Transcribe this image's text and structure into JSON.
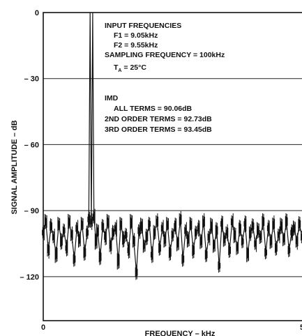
{
  "chart_data": {
    "type": "line",
    "xlabel": "FREQUENCY – kHz",
    "ylabel": "SIGNAL AMPLITUDE – dB",
    "xlim": [
      0,
      50
    ],
    "ylim": [
      -140,
      0
    ],
    "x_ticks": [
      "0",
      "5"
    ],
    "y_ticks": [
      "0",
      "– 30",
      "– 60",
      "– 90",
      "– 120"
    ],
    "y_tick_values": [
      0,
      -30,
      -60,
      -90,
      -120
    ],
    "grid": true,
    "series": [
      {
        "values_note": "FFT spectrum",
        "x": [
          0,
          0.5,
          1,
          1.5,
          2,
          2.5,
          3,
          3.5,
          4,
          4.5,
          5,
          5.5,
          6,
          6.5,
          7,
          7.5,
          8,
          8.5,
          8.8,
          9.05,
          9.3,
          9.55,
          9.8,
          10.2,
          10.5,
          11,
          11.5,
          12,
          12.5,
          13,
          13.5,
          14,
          14.5,
          15,
          15.5,
          16,
          16.5,
          17,
          17.5,
          18,
          18.5,
          19,
          19.5,
          20,
          20.5,
          21,
          21.5,
          22,
          22.5,
          23,
          23.5,
          24,
          24.5,
          25,
          25.5,
          26,
          26.5,
          27,
          27.5,
          28,
          28.5,
          29,
          29.5,
          30,
          30.5,
          31,
          31.5,
          32,
          32.5,
          33,
          33.5,
          34,
          34.5,
          35,
          35.5,
          36,
          36.5,
          37,
          37.5,
          38,
          38.5,
          39,
          39.5,
          40,
          40.5,
          41,
          41.5,
          42,
          42.5,
          43,
          43.5,
          44,
          44.5,
          45,
          45.5,
          46,
          46.5,
          47,
          47.5,
          48,
          48.5,
          49,
          49.5,
          50
        ],
        "values": [
          -100,
          -95,
          -108,
          -97,
          -102,
          -110,
          -96,
          -104,
          -99,
          -107,
          -95,
          -101,
          -112,
          -98,
          -103,
          -96,
          -109,
          -100,
          -94,
          0,
          -95,
          0,
          -93,
          -104,
          -99,
          -111,
          -97,
          -102,
          -95,
          -106,
          -100,
          -98,
          -113,
          -96,
          -103,
          -101,
          -108,
          -95,
          -104,
          -118,
          -99,
          -97,
          -106,
          -102,
          -96,
          -110,
          -100,
          -95,
          -107,
          -98,
          -103,
          -96,
          -109,
          -101,
          -97,
          -105,
          -94,
          -112,
          -99,
          -103,
          -96,
          -108,
          -100,
          -98,
          -104,
          -95,
          -110,
          -102,
          -97,
          -106,
          -99,
          -115,
          -96,
          -103,
          -100,
          -108,
          -95,
          -101,
          -107,
          -98,
          -104,
          -96,
          -110,
          -100,
          -97,
          -105,
          -99,
          -102,
          -95,
          -109,
          -98,
          -104,
          -96,
          -107,
          -101,
          -97,
          -103,
          -95,
          -108,
          -100,
          -98,
          -104,
          -96,
          -102
        ]
      }
    ],
    "annotations": {
      "line1": "INPUT FREQUENCIES",
      "line2": "F1 = 9.05kHz",
      "line3": "F2 = 9.55kHz",
      "line4": "SAMPLING FREQUENCY = 100kHz",
      "line5_main": "T",
      "line5_sub": "A",
      "line5_rest": " = 25°C",
      "line6": "IMD",
      "line7": "ALL TERMS = 90.06dB",
      "line8": "2ND ORDER TERMS = 92.73dB",
      "line9": "3RD ORDER TERMS = 93.45dB"
    }
  }
}
